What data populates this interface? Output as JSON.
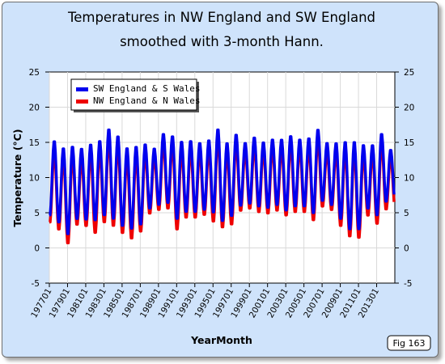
{
  "chart_data": {
    "type": "line",
    "title_lines": [
      "Temperatures in NW England and SW England",
      "smoothed with 3-month Hann."
    ],
    "xlabel": "YearMonth",
    "ylabel": "Temperature (°C)",
    "ylim": [
      -5,
      25
    ],
    "yticks": [
      -5,
      0,
      5,
      10,
      15,
      20,
      25
    ],
    "x_range": [
      "1977-01",
      "2014-12"
    ],
    "xtick_labels": [
      "197701",
      "197901",
      "198101",
      "198301",
      "198501",
      "198701",
      "198901",
      "199101",
      "199301",
      "199501",
      "199701",
      "199901",
      "200101",
      "200301",
      "200501",
      "200701",
      "200901",
      "201101",
      "201301"
    ],
    "grid": true,
    "legend_position": "top-left",
    "figure_label": "Fig 163",
    "years": [
      1977,
      1978,
      1979,
      1980,
      1981,
      1982,
      1983,
      1984,
      1985,
      1986,
      1987,
      1988,
      1989,
      1990,
      1991,
      1992,
      1993,
      1994,
      1995,
      1996,
      1997,
      1998,
      1999,
      2000,
      2001,
      2002,
      2003,
      2004,
      2005,
      2006,
      2007,
      2008,
      2009,
      2010,
      2011,
      2012,
      2013,
      2014
    ],
    "series": [
      {
        "name": "SW England & S Wales",
        "color": "#0000ee",
        "annual_min": [
          4.5,
          3.5,
          1.8,
          4.0,
          3.9,
          3.8,
          4.5,
          4.0,
          3.0,
          2.6,
          3.2,
          5.5,
          6.0,
          6.3,
          4.0,
          5.0,
          5.0,
          5.3,
          4.9,
          3.7,
          4.4,
          5.9,
          6.2,
          5.8,
          5.6,
          6.0,
          5.2,
          5.8,
          5.8,
          4.8,
          6.6,
          6.0,
          4.0,
          2.5,
          2.5,
          5.5,
          4.5,
          6.5
        ],
        "annual_max": [
          15.3,
          14.3,
          14.5,
          14.2,
          14.8,
          15.3,
          17.0,
          16.0,
          14.3,
          14.5,
          14.8,
          14.2,
          16.3,
          16.0,
          15.2,
          15.3,
          15.0,
          15.4,
          17.0,
          15.0,
          16.2,
          15.0,
          15.8,
          15.1,
          15.5,
          15.5,
          16.0,
          15.5,
          15.7,
          16.9,
          15.0,
          15.0,
          15.2,
          15.2,
          14.7,
          14.7,
          16.3,
          14.0
        ]
      },
      {
        "name": "NW England & N Wales",
        "color": "#ee0000",
        "annual_min": [
          3.5,
          2.5,
          0.5,
          3.2,
          3.0,
          2.0,
          3.5,
          3.0,
          2.0,
          1.2,
          2.2,
          4.8,
          5.3,
          5.5,
          2.5,
          4.2,
          4.2,
          4.6,
          3.6,
          2.8,
          3.2,
          5.2,
          5.5,
          5.0,
          4.8,
          5.2,
          4.5,
          5.0,
          5.0,
          3.8,
          5.8,
          5.3,
          3.0,
          1.5,
          1.3,
          4.5,
          3.3,
          5.4
        ],
        "annual_max": [
          14.0,
          13.3,
          13.5,
          13.0,
          13.8,
          14.2,
          16.0,
          15.0,
          13.2,
          13.5,
          13.8,
          13.3,
          15.2,
          15.0,
          14.2,
          14.2,
          14.0,
          14.3,
          16.2,
          14.0,
          15.2,
          14.1,
          14.8,
          14.2,
          14.5,
          14.5,
          15.0,
          14.6,
          14.7,
          15.8,
          14.0,
          14.0,
          14.2,
          14.2,
          13.7,
          13.8,
          15.2,
          13.2
        ]
      }
    ]
  }
}
